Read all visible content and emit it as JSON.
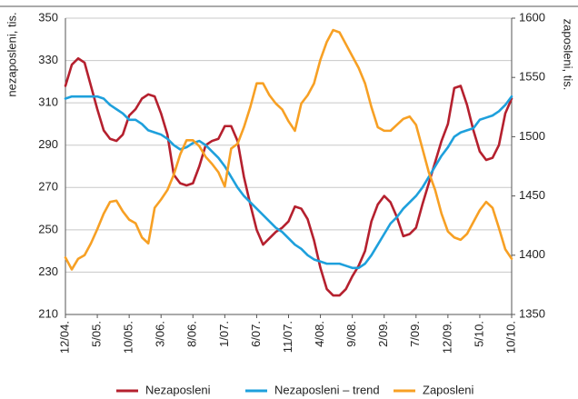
{
  "chart_data": {
    "type": "line",
    "ylabel": "nezaposleni, tis.",
    "y2label": "zaposleni, tis.",
    "categories": [
      "12/04.",
      null,
      null,
      null,
      null,
      "5/05.",
      null,
      null,
      null,
      null,
      "10/05.",
      null,
      null,
      null,
      null,
      "3/06.",
      null,
      null,
      null,
      null,
      "8/06.",
      null,
      null,
      null,
      null,
      "1/07.",
      null,
      null,
      null,
      null,
      "6/07.",
      null,
      null,
      null,
      null,
      "11/07.",
      null,
      null,
      null,
      null,
      "4/08.",
      null,
      null,
      null,
      null,
      "9/08.",
      null,
      null,
      null,
      null,
      "2/09.",
      null,
      null,
      null,
      null,
      "7/09.",
      null,
      null,
      null,
      null,
      "12/09.",
      null,
      null,
      null,
      null,
      "5/10.",
      null,
      null,
      null,
      null,
      "10/10."
    ],
    "series": [
      {
        "name": "Nezaposleni",
        "color": "#b5202e",
        "values": [
          318,
          328,
          331,
          329,
          318,
          307,
          297,
          293,
          292,
          295,
          304,
          307,
          312,
          314,
          313,
          305,
          295,
          276,
          272,
          271,
          272,
          280,
          290,
          292,
          293,
          299,
          299,
          292,
          275,
          262,
          250,
          243,
          246,
          249,
          251,
          254,
          261,
          260,
          255,
          245,
          232,
          222,
          219,
          219,
          222,
          228,
          233,
          240,
          254,
          262,
          266,
          263,
          256,
          247,
          248,
          251,
          262,
          272,
          282,
          292,
          300,
          317,
          318,
          309,
          297,
          287,
          283,
          284,
          290,
          305,
          312
        ]
      },
      {
        "name": "Nezaposleni – trend",
        "color": "#1ea0dc",
        "values": [
          312,
          313,
          313,
          313,
          313,
          313,
          312,
          309,
          307,
          305,
          302,
          302,
          300,
          297,
          296,
          295,
          293,
          290,
          288,
          289,
          291,
          292,
          290,
          287,
          284,
          280,
          275,
          270,
          266,
          263,
          260,
          257,
          254,
          251,
          249,
          246,
          243,
          241,
          238,
          236,
          235,
          234,
          234,
          234,
          233,
          232,
          232,
          234,
          238,
          243,
          248,
          253,
          256,
          260,
          263,
          266,
          270,
          275,
          280,
          285,
          289,
          294,
          296,
          297,
          298,
          302,
          303,
          304,
          306,
          309,
          313
        ]
      },
      {
        "name": "Zaposleni",
        "color": "#f7a024",
        "axis": "y2",
        "values": [
          1398,
          1388,
          1397,
          1400,
          1410,
          1422,
          1435,
          1445,
          1446,
          1437,
          1430,
          1427,
          1415,
          1410,
          1440,
          1447,
          1455,
          1468,
          1485,
          1497,
          1497,
          1492,
          1483,
          1477,
          1470,
          1458,
          1490,
          1494,
          1508,
          1525,
          1545,
          1545,
          1535,
          1528,
          1523,
          1513,
          1505,
          1528,
          1535,
          1545,
          1565,
          1580,
          1590,
          1588,
          1578,
          1568,
          1558,
          1545,
          1525,
          1508,
          1505,
          1505,
          1510,
          1515,
          1517,
          1510,
          1490,
          1470,
          1455,
          1435,
          1420,
          1415,
          1413,
          1418,
          1428,
          1438,
          1445,
          1440,
          1423,
          1405,
          1397
        ]
      }
    ],
    "ylim": [
      210,
      350
    ],
    "yticks": [
      210,
      230,
      250,
      270,
      290,
      310,
      330,
      350
    ],
    "y2lim": [
      1350,
      1600
    ],
    "y2ticks": [
      1350,
      1400,
      1450,
      1500,
      1550,
      1600
    ],
    "grid": true,
    "legend": "bottom"
  }
}
